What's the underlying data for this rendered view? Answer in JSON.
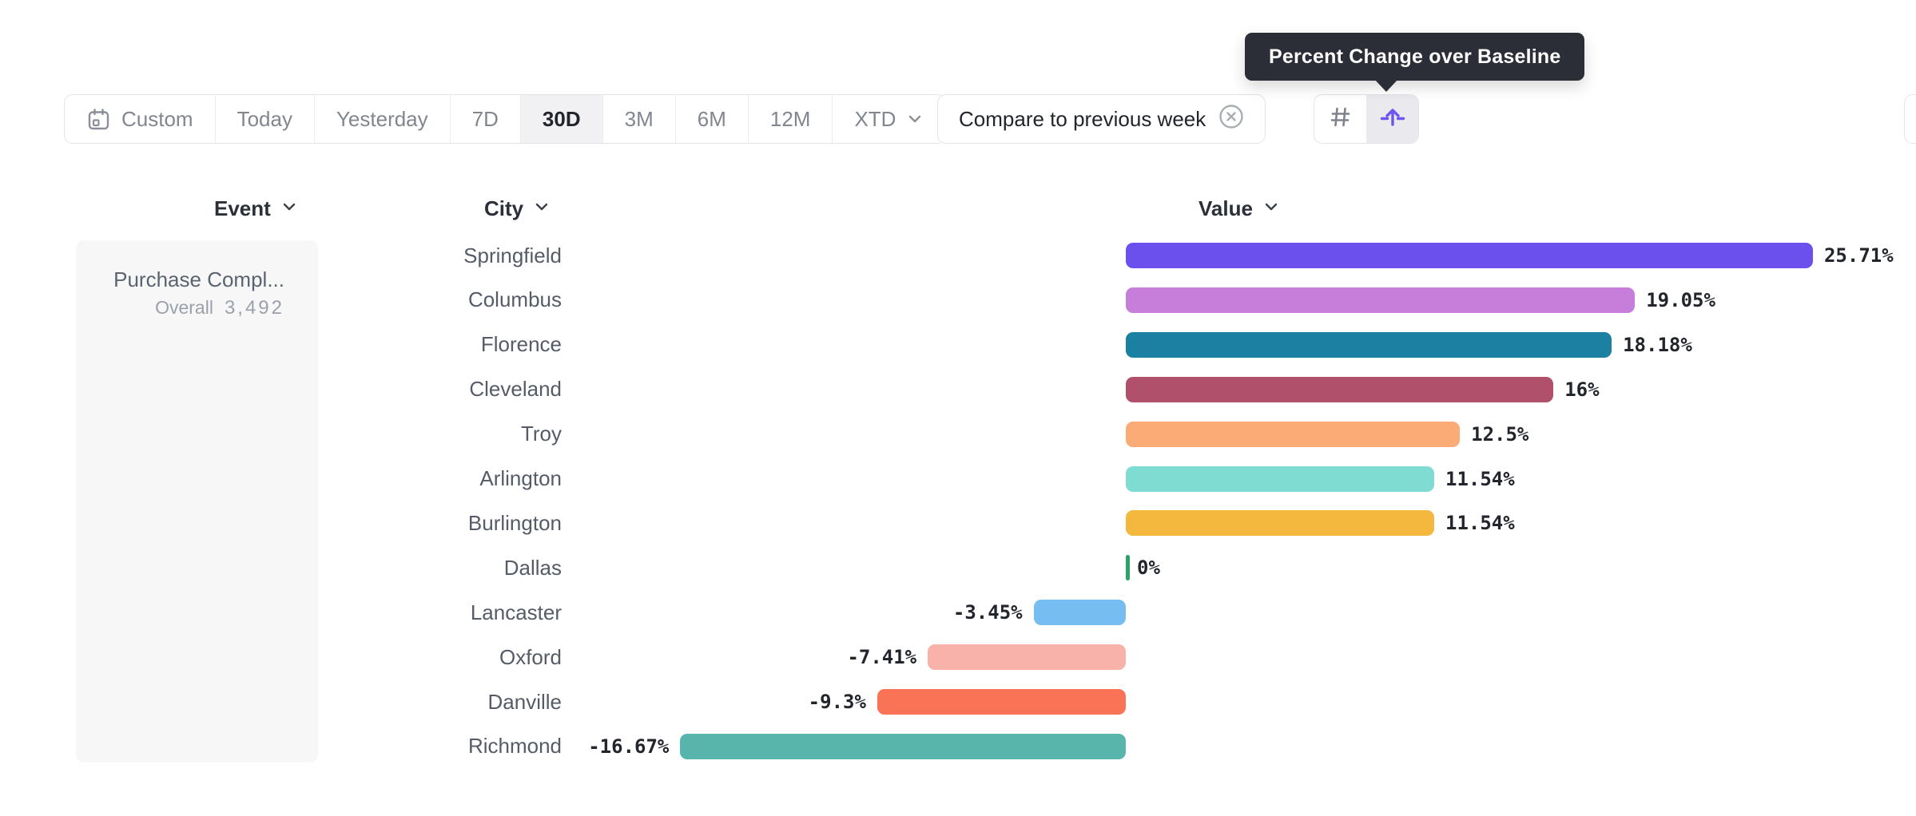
{
  "tooltip": {
    "text": "Percent Change over Baseline"
  },
  "toolbar": {
    "date_ranges": [
      {
        "label": "Custom",
        "icon": "calendar-icon",
        "selected": false
      },
      {
        "label": "Today",
        "selected": false
      },
      {
        "label": "Yesterday",
        "selected": false
      },
      {
        "label": "7D",
        "selected": false
      },
      {
        "label": "30D",
        "selected": true
      },
      {
        "label": "3M",
        "selected": false
      },
      {
        "label": "6M",
        "selected": false
      },
      {
        "label": "12M",
        "selected": false
      },
      {
        "label": "XTD",
        "chevron": true,
        "selected": false
      }
    ],
    "compare": {
      "label": "Compare to previous week",
      "icon": "circle-x-icon"
    },
    "view_toggle": [
      {
        "icon": "hash-icon",
        "selected": false,
        "color": "#7d828c"
      },
      {
        "icon": "baseline-arrow-icon",
        "selected": true,
        "color": "#6e55f2"
      }
    ]
  },
  "columns": {
    "event": "Event",
    "city": "City",
    "value": "Value"
  },
  "event_panel": {
    "title": "Purchase Compl...",
    "metric_label": "Overall",
    "metric_value": "3,492"
  },
  "chart_data": {
    "type": "bar",
    "orientation": "horizontal",
    "title": "Percent Change over Baseline",
    "unit": "percent",
    "xlim": [
      -16.67,
      25.71
    ],
    "grid": false,
    "categories": [
      "Springfield",
      "Columbus",
      "Florence",
      "Cleveland",
      "Troy",
      "Arlington",
      "Burlington",
      "Dallas",
      "Lancaster",
      "Oxford",
      "Danville",
      "Richmond"
    ],
    "values": [
      25.71,
      19.05,
      18.18,
      16,
      12.5,
      11.54,
      11.54,
      0,
      -3.45,
      -7.41,
      -9.3,
      -16.67
    ],
    "labels": [
      "25.71%",
      "19.05%",
      "18.18%",
      "16%",
      "12.5%",
      "11.54%",
      "11.54%",
      "0%",
      "-3.45%",
      "-7.41%",
      "-9.3%",
      "-16.67%"
    ],
    "colors": [
      "#6C50EE",
      "#C77EDB",
      "#1B80A1",
      "#B0506A",
      "#FBAB75",
      "#7EDCD2",
      "#F5B83E",
      "#2BA266",
      "#76BEF1",
      "#F9B2A9",
      "#FA7356",
      "#58B5AB"
    ]
  }
}
